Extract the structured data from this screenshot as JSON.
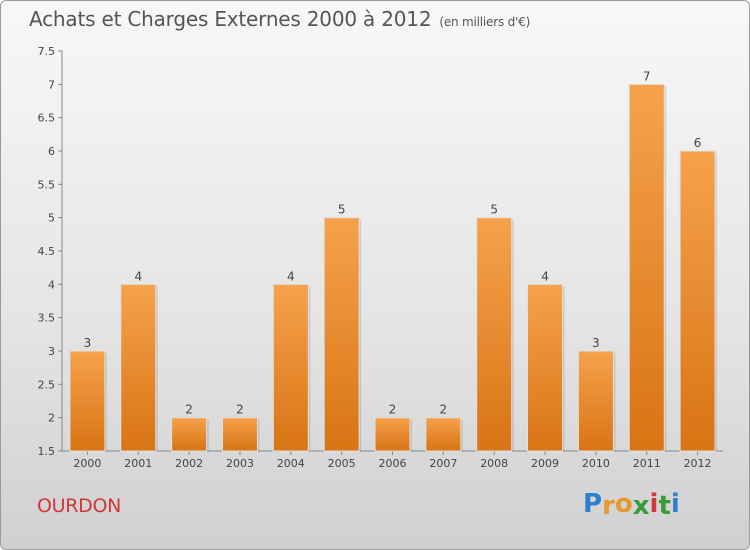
{
  "title": "Achats et Charges Externes 2000 à 2012",
  "subtitle": "(en milliers d'€)",
  "place": "OURDON",
  "brand": {
    "letters": [
      "P",
      "r",
      "o",
      "x",
      "i",
      "t",
      "i"
    ],
    "colors": [
      "#2f7fcf",
      "#e6992e",
      "#e6992e",
      "#3c9a3a",
      "#d2353a",
      "#3c9a3a",
      "#2f7fcf"
    ]
  },
  "chart_data": {
    "type": "bar",
    "categories": [
      "2000",
      "2001",
      "2002",
      "2003",
      "2004",
      "2005",
      "2006",
      "2007",
      "2008",
      "2009",
      "2010",
      "2011",
      "2012"
    ],
    "values": [
      3,
      4,
      2,
      2,
      4,
      5,
      2,
      2,
      5,
      4,
      3,
      7,
      6
    ],
    "data_labels": [
      "3",
      "4",
      "2",
      "2",
      "4",
      "5",
      "2",
      "2",
      "5",
      "4",
      "3",
      "7",
      "6"
    ],
    "ylim": [
      1.5,
      7.5
    ],
    "yticks": [
      "1.5",
      "2",
      "2.5",
      "3",
      "3.5",
      "4",
      "4.5",
      "5",
      "5.5",
      "6",
      "6.5",
      "7",
      "7.5"
    ],
    "grid": false,
    "bar_color": "#f0912f"
  }
}
